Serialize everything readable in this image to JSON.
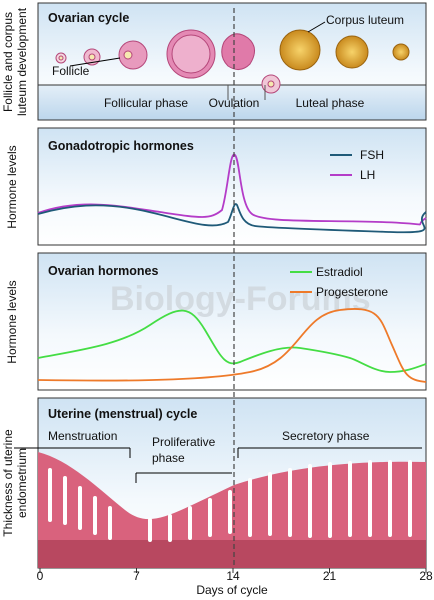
{
  "panels": [
    {
      "ylabel": [
        "Follicle and corpus",
        "luteum development"
      ],
      "title": "Ovarian cycle",
      "labels": [
        "Follicle",
        "Corpus luteum"
      ],
      "phases": [
        "Follicular phase",
        "Ovulation",
        "Luteal phase"
      ]
    },
    {
      "ylabel": [
        "Hormone levels"
      ],
      "title": "Gonadotropic hormones",
      "legend": [
        "FSH",
        "LH"
      ]
    },
    {
      "ylabel": [
        "Hormone levels"
      ],
      "title": "Ovarian hormones",
      "legend": [
        "Estradiol",
        "Progesterone"
      ]
    },
    {
      "ylabel": [
        "Thickness of uterine",
        "endometrium"
      ],
      "title": "Uterine (menstrual) cycle",
      "phases": [
        "Menstruation",
        "Proliferative",
        "phase",
        "Secretory phase"
      ]
    }
  ],
  "watermark": "Biology-Forums",
  "xaxis": {
    "ticks": [
      0,
      7,
      14,
      21,
      28
    ],
    "label": "Days of cycle"
  }
}
